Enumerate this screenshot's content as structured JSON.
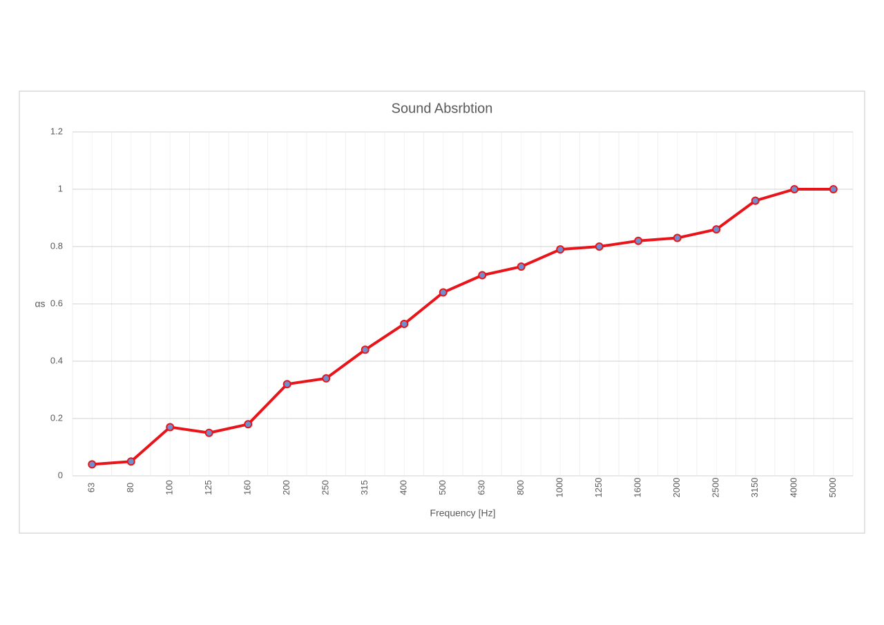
{
  "chart_data": {
    "type": "line",
    "title": "Sound Absrbtion",
    "x_label": "Frequency [Hz]",
    "y_label": "αs",
    "categories": [
      "63",
      "80",
      "100",
      "125",
      "160",
      "200",
      "250",
      "315",
      "400",
      "500",
      "630",
      "800",
      "1000",
      "1250",
      "1600",
      "2000",
      "2500",
      "3150",
      "4000",
      "5000"
    ],
    "series": [
      {
        "name": "αs",
        "color": "#e8141a",
        "marker_color": "#6f8fcf",
        "values": [
          0.04,
          0.05,
          0.17,
          0.15,
          0.18,
          0.32,
          0.34,
          0.44,
          0.53,
          0.64,
          0.7,
          0.73,
          0.79,
          0.8,
          0.82,
          0.83,
          0.86,
          0.96,
          1.0,
          1.0
        ]
      }
    ],
    "ylim": [
      0,
      1.2
    ],
    "yticks": [
      0,
      0.2,
      0.4,
      0.6,
      0.8,
      1,
      1.2
    ],
    "grid": true
  }
}
